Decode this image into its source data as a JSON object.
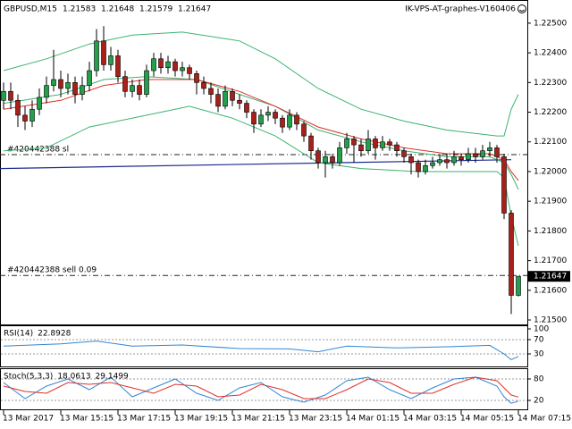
{
  "chart_data": [
    {
      "type": "candlestick",
      "title": "GBPUSD,M15",
      "label_right": "IK-VPS-AT-graphes-V160406",
      "up_color": "#22a04b",
      "down_color": "#a8201a",
      "open": [
        1.2224,
        1.2227,
        1.2224,
        1.2219,
        1.2217,
        1.2221,
        1.2225,
        1.2229,
        1.2231,
        1.2228,
        1.223,
        1.2226,
        1.2229,
        1.2234,
        1.2244,
        1.2236,
        1.2239,
        1.2232,
        1.2227,
        1.2229,
        1.2226,
        1.2234,
        1.2238,
        1.2235,
        1.2237,
        1.2234,
        1.2235,
        1.2233,
        1.223,
        1.2228,
        1.2226,
        1.2222,
        1.2227,
        1.2224,
        1.2223,
        1.222,
        1.2216,
        1.2219,
        1.222,
        1.2218,
        1.2215,
        1.2219,
        1.2216,
        1.2212,
        1.2207,
        1.2203,
        1.2205,
        1.2203,
        1.2208,
        1.2211,
        1.2209,
        1.2207,
        1.2211,
        1.2208,
        1.221,
        1.2209,
        1.2207,
        1.2205,
        1.2203,
        1.22,
        1.2202,
        1.2203,
        1.2204,
        1.2203,
        1.2205,
        1.2204,
        1.2206,
        1.2205,
        1.2207,
        1.2208,
        1.2205,
        1.2186,
        1.21583
      ],
      "high": [
        1.223,
        1.223,
        1.2226,
        1.2222,
        1.2224,
        1.2228,
        1.2232,
        1.2241,
        1.2234,
        1.2233,
        1.2232,
        1.2232,
        1.2237,
        1.2248,
        1.2249,
        1.2242,
        1.2241,
        1.2234,
        1.2231,
        1.2231,
        1.2236,
        1.224,
        1.224,
        1.2239,
        1.2238,
        1.2237,
        1.2236,
        1.2234,
        1.2232,
        1.223,
        1.2228,
        1.2229,
        1.2228,
        1.2226,
        1.2224,
        1.2221,
        1.2221,
        1.2222,
        1.2221,
        1.2219,
        1.2221,
        1.222,
        1.2217,
        1.2213,
        1.2208,
        1.2207,
        1.2206,
        1.221,
        1.2213,
        1.2212,
        1.2211,
        1.2214,
        1.2212,
        1.2212,
        1.2211,
        1.221,
        1.2208,
        1.2206,
        1.2204,
        1.2204,
        1.2205,
        1.2206,
        1.2206,
        1.2207,
        1.2206,
        1.2208,
        1.2208,
        1.2209,
        1.221,
        1.2209,
        1.2206,
        1.2187,
        1.21648
      ],
      "low": [
        1.2221,
        1.2221,
        1.2215,
        1.2214,
        1.2215,
        1.2219,
        1.2223,
        1.2227,
        1.2225,
        1.2226,
        1.2223,
        1.2224,
        1.2227,
        1.2232,
        1.2234,
        1.2234,
        1.223,
        1.2225,
        1.2225,
        1.2224,
        1.2225,
        1.2232,
        1.2233,
        1.2233,
        1.2232,
        1.2232,
        1.2231,
        1.2226,
        1.2226,
        1.2223,
        1.222,
        1.2221,
        1.2222,
        1.2221,
        1.2218,
        1.2213,
        1.2215,
        1.2217,
        1.2216,
        1.2213,
        1.2214,
        1.2214,
        1.221,
        1.2204,
        1.2201,
        1.2198,
        1.2201,
        1.2202,
        1.2206,
        1.2203,
        1.2205,
        1.2206,
        1.2204,
        1.2207,
        1.2207,
        1.2205,
        1.2203,
        1.2199,
        1.2198,
        1.2199,
        1.2201,
        1.2202,
        1.2201,
        1.2202,
        1.2202,
        1.2203,
        1.2203,
        1.2204,
        1.2205,
        1.2203,
        1.2184,
        1.2152,
        1.21579
      ],
      "close": [
        1.2227,
        1.2224,
        1.2219,
        1.2217,
        1.2221,
        1.2225,
        1.2229,
        1.2231,
        1.2228,
        1.223,
        1.2226,
        1.2229,
        1.2234,
        1.2244,
        1.2236,
        1.2239,
        1.2232,
        1.2227,
        1.2229,
        1.2226,
        1.2234,
        1.2238,
        1.2235,
        1.2237,
        1.2234,
        1.2235,
        1.2233,
        1.223,
        1.2228,
        1.2226,
        1.2222,
        1.2227,
        1.2224,
        1.2223,
        1.222,
        1.2216,
        1.2219,
        1.222,
        1.2218,
        1.2215,
        1.2219,
        1.2216,
        1.2212,
        1.2207,
        1.2203,
        1.2205,
        1.2203,
        1.2208,
        1.2211,
        1.2209,
        1.2207,
        1.2211,
        1.2208,
        1.221,
        1.2209,
        1.2207,
        1.2205,
        1.2203,
        1.22,
        1.2202,
        1.2203,
        1.2204,
        1.2203,
        1.2205,
        1.2204,
        1.2206,
        1.2205,
        1.2207,
        1.2208,
        1.2205,
        1.2186,
        1.21583,
        1.21647
      ],
      "overlays": [
        {
          "color": "#3cb371",
          "x": [
            0,
            6,
            12,
            18,
            25,
            33,
            38,
            44,
            50,
            56,
            62,
            69,
            70,
            71,
            72
          ],
          "values": [
            1.2234,
            1.2238,
            1.2243,
            1.2246,
            1.2247,
            1.2244,
            1.2238,
            1.2228,
            1.2221,
            1.2217,
            1.2214,
            1.2212,
            1.2212,
            1.2221,
            1.2226
          ]
        },
        {
          "color": "#3cb371",
          "x": [
            0,
            8,
            14,
            20,
            27,
            33,
            38,
            44,
            50,
            56,
            62,
            68,
            70,
            71,
            72
          ],
          "values": [
            1.2223,
            1.2226,
            1.2231,
            1.2232,
            1.2231,
            1.2226,
            1.2222,
            1.2214,
            1.221,
            1.2207,
            1.2205,
            1.2205,
            1.2203,
            1.2199,
            1.2194
          ]
        },
        {
          "color": "#3cb371",
          "x": [
            0,
            6,
            12,
            20,
            26,
            32,
            38,
            44,
            50,
            58,
            69,
            70,
            71,
            72
          ],
          "values": [
            1.2207,
            1.2208,
            1.2215,
            1.2219,
            1.2222,
            1.2218,
            1.2212,
            1.2203,
            1.2201,
            1.22,
            1.22,
            1.2198,
            1.2185,
            1.2175
          ]
        },
        {
          "color": "#e0302a",
          "x": [
            0,
            8,
            14,
            20,
            27,
            33,
            38,
            44,
            50,
            56,
            62,
            68,
            70,
            71,
            72
          ],
          "values": [
            1.2221,
            1.2224,
            1.2229,
            1.2231,
            1.2231,
            1.2227,
            1.2222,
            1.2215,
            1.2211,
            1.2208,
            1.2206,
            1.2206,
            1.2204,
            1.22,
            1.2197
          ]
        }
      ],
      "trendline": {
        "color": "#1c2a8c",
        "x": [
          -0.5,
          71
        ],
        "values": [
          1.2201,
          1.2204
        ]
      },
      "order_lines": [
        {
          "label": "#420442388 sl",
          "value": 1.22057
        },
        {
          "label": "#420442388 sell 0.09",
          "value": 1.2165
        }
      ],
      "xlim": [
        -0.5,
        73.25
      ],
      "ylim": [
        1.21488,
        1.22578
      ],
      "yticks": [
        {
          "value": 1.225,
          "label": "1.22500"
        },
        {
          "value": 1.224,
          "label": "1.22400"
        },
        {
          "value": 1.223,
          "label": "1.22300"
        },
        {
          "value": 1.222,
          "label": "1.22200"
        },
        {
          "value": 1.221,
          "label": "1.22100"
        },
        {
          "value": 1.22,
          "label": "1.22000"
        },
        {
          "value": 1.219,
          "label": "1.21900"
        },
        {
          "value": 1.218,
          "label": "1.21800"
        },
        {
          "value": 1.217,
          "label": "1.21700"
        },
        {
          "value": 1.216,
          "label": "1.21600"
        },
        {
          "value": 1.215,
          "label": "1.21500"
        }
      ],
      "xticks": [
        {
          "value": 0,
          "label": "13 Mar 2017"
        },
        {
          "value": 8,
          "label": "13 Mar 15:15"
        },
        {
          "value": 16,
          "label": "13 Mar 17:15"
        },
        {
          "value": 24,
          "label": "13 Mar 19:15"
        },
        {
          "value": 32,
          "label": "13 Mar 21:15"
        },
        {
          "value": 40,
          "label": "13 Mar 23:15"
        },
        {
          "value": 48,
          "label": "14 Mar 01:15"
        },
        {
          "value": 56,
          "label": "14 Mar 03:15"
        },
        {
          "value": 64,
          "label": "14 Mar 05:15"
        },
        {
          "value": 72,
          "label": "14 Mar 07:15"
        }
      ]
    },
    {
      "type": "line",
      "title": "RSI(14)",
      "ylim": [
        0,
        100
      ],
      "yticks": [
        100,
        70,
        30
      ],
      "levels": [
        70,
        30
      ],
      "x": [
        0,
        8,
        13,
        18,
        25,
        33,
        40,
        44,
        48,
        55,
        62,
        68,
        70,
        71,
        72
      ],
      "series": [
        {
          "color": "#2f86d4",
          "values": [
            52,
            58,
            66,
            52,
            55,
            45,
            44,
            36,
            52,
            47,
            50,
            54,
            30,
            14,
            22.8928
          ]
        }
      ]
    },
    {
      "type": "line",
      "title": "Stoch(5,3,3)",
      "ylim": [
        0,
        100
      ],
      "yticks": [
        80,
        20
      ],
      "levels": [
        80,
        20
      ],
      "x": [
        0,
        3,
        6,
        9,
        12,
        15,
        18,
        21,
        24,
        27,
        30,
        33,
        36,
        39,
        42,
        45,
        48,
        51,
        54,
        57,
        60,
        63,
        66,
        69,
        70,
        71,
        72
      ],
      "series": [
        {
          "color": "#2f86d4",
          "values": [
            70,
            25,
            60,
            80,
            50,
            85,
            30,
            55,
            80,
            40,
            20,
            55,
            70,
            30,
            15,
            35,
            75,
            85,
            50,
            25,
            55,
            80,
            85,
            60,
            30,
            12,
            18.0613
          ]
        },
        {
          "color": "#e0302a",
          "values": [
            60,
            45,
            40,
            70,
            65,
            70,
            55,
            40,
            65,
            60,
            30,
            35,
            65,
            50,
            25,
            25,
            50,
            80,
            70,
            40,
            40,
            65,
            85,
            75,
            55,
            35,
            29.1499
          ]
        }
      ]
    }
  ]
}
